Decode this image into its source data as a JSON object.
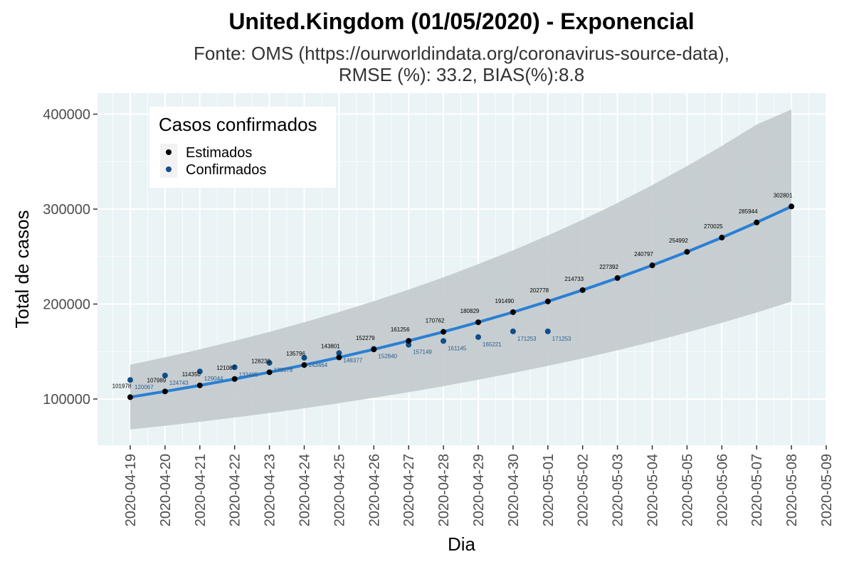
{
  "chart_data": {
    "type": "line",
    "title": "United.Kingdom (01/05/2020) - Exponencial",
    "subtitle_line1": "Fonte: OMS (https://ourworldindata.org/coronavirus-source-data),",
    "subtitle_line2": "RMSE (%): 33.2, BIAS(%):8.8",
    "xlabel": "Dia",
    "ylabel": "Total de casos",
    "ylim": [
      50000,
      420000
    ],
    "y_ticks": [
      "100000",
      "200000",
      "300000",
      "400000"
    ],
    "x_ticks": [
      "2020-04-19",
      "2020-04-20",
      "2020-04-21",
      "2020-04-22",
      "2020-04-23",
      "2020-04-24",
      "2020-04-25",
      "2020-04-26",
      "2020-04-27",
      "2020-04-28",
      "2020-04-29",
      "2020-04-30",
      "2020-05-01",
      "2020-05-02",
      "2020-05-03",
      "2020-05-04",
      "2020-05-05",
      "2020-05-06",
      "2020-05-07",
      "2020-05-08",
      "2020-05-09"
    ],
    "legend_title": "Casos confirmados",
    "legend_position": "top-left",
    "grid": true,
    "estimated": {
      "name": "Estimados",
      "color": "#000000",
      "values": [
        101978,
        107989,
        114350,
        121087,
        128230,
        135796,
        143801,
        152279,
        161256,
        170762,
        180829,
        191490,
        202778,
        214733,
        227392,
        240797,
        254992,
        270025,
        285944,
        302801
      ]
    },
    "confirmed": {
      "name": "Confirmados",
      "color": "#0f4f8a",
      "values": [
        120067,
        124743,
        129044,
        133495,
        138078,
        143464,
        148377,
        152840,
        157149,
        161145,
        165221,
        171253,
        171253
      ]
    },
    "labels_estimated": [
      "101978",
      "107989",
      "114350",
      "121087",
      "128230",
      "135796",
      "143801",
      "152279",
      "161256",
      "170762",
      "180829",
      "191490",
      "202778",
      "214733",
      "227392",
      "240797",
      "254992",
      "270025",
      "285944",
      "302801"
    ],
    "labels_confirmed": [
      "120067",
      "124743",
      "129044",
      "133495",
      "138078",
      "143464",
      "148377",
      "152840",
      "157149",
      "161145",
      "165221",
      "171253",
      "171253"
    ],
    "band": {
      "lower": [
        68000,
        71800,
        76000,
        80500,
        85200,
        90300,
        95600,
        101300,
        107200,
        113500,
        120300,
        127400,
        134900,
        142800,
        151300,
        160300,
        170000,
        180200,
        191100,
        202600
      ],
      "upper": [
        136100,
        143900,
        152300,
        161200,
        170700,
        180800,
        191600,
        203000,
        215200,
        228100,
        242000,
        256600,
        272200,
        288800,
        306500,
        325300,
        345300,
        366500,
        389000,
        405000
      ]
    },
    "colors": {
      "fit_line": "#2a7fd4",
      "band": "#c5cbcf",
      "panel": "#eaf3f5",
      "grid": "#ffffff"
    }
  }
}
